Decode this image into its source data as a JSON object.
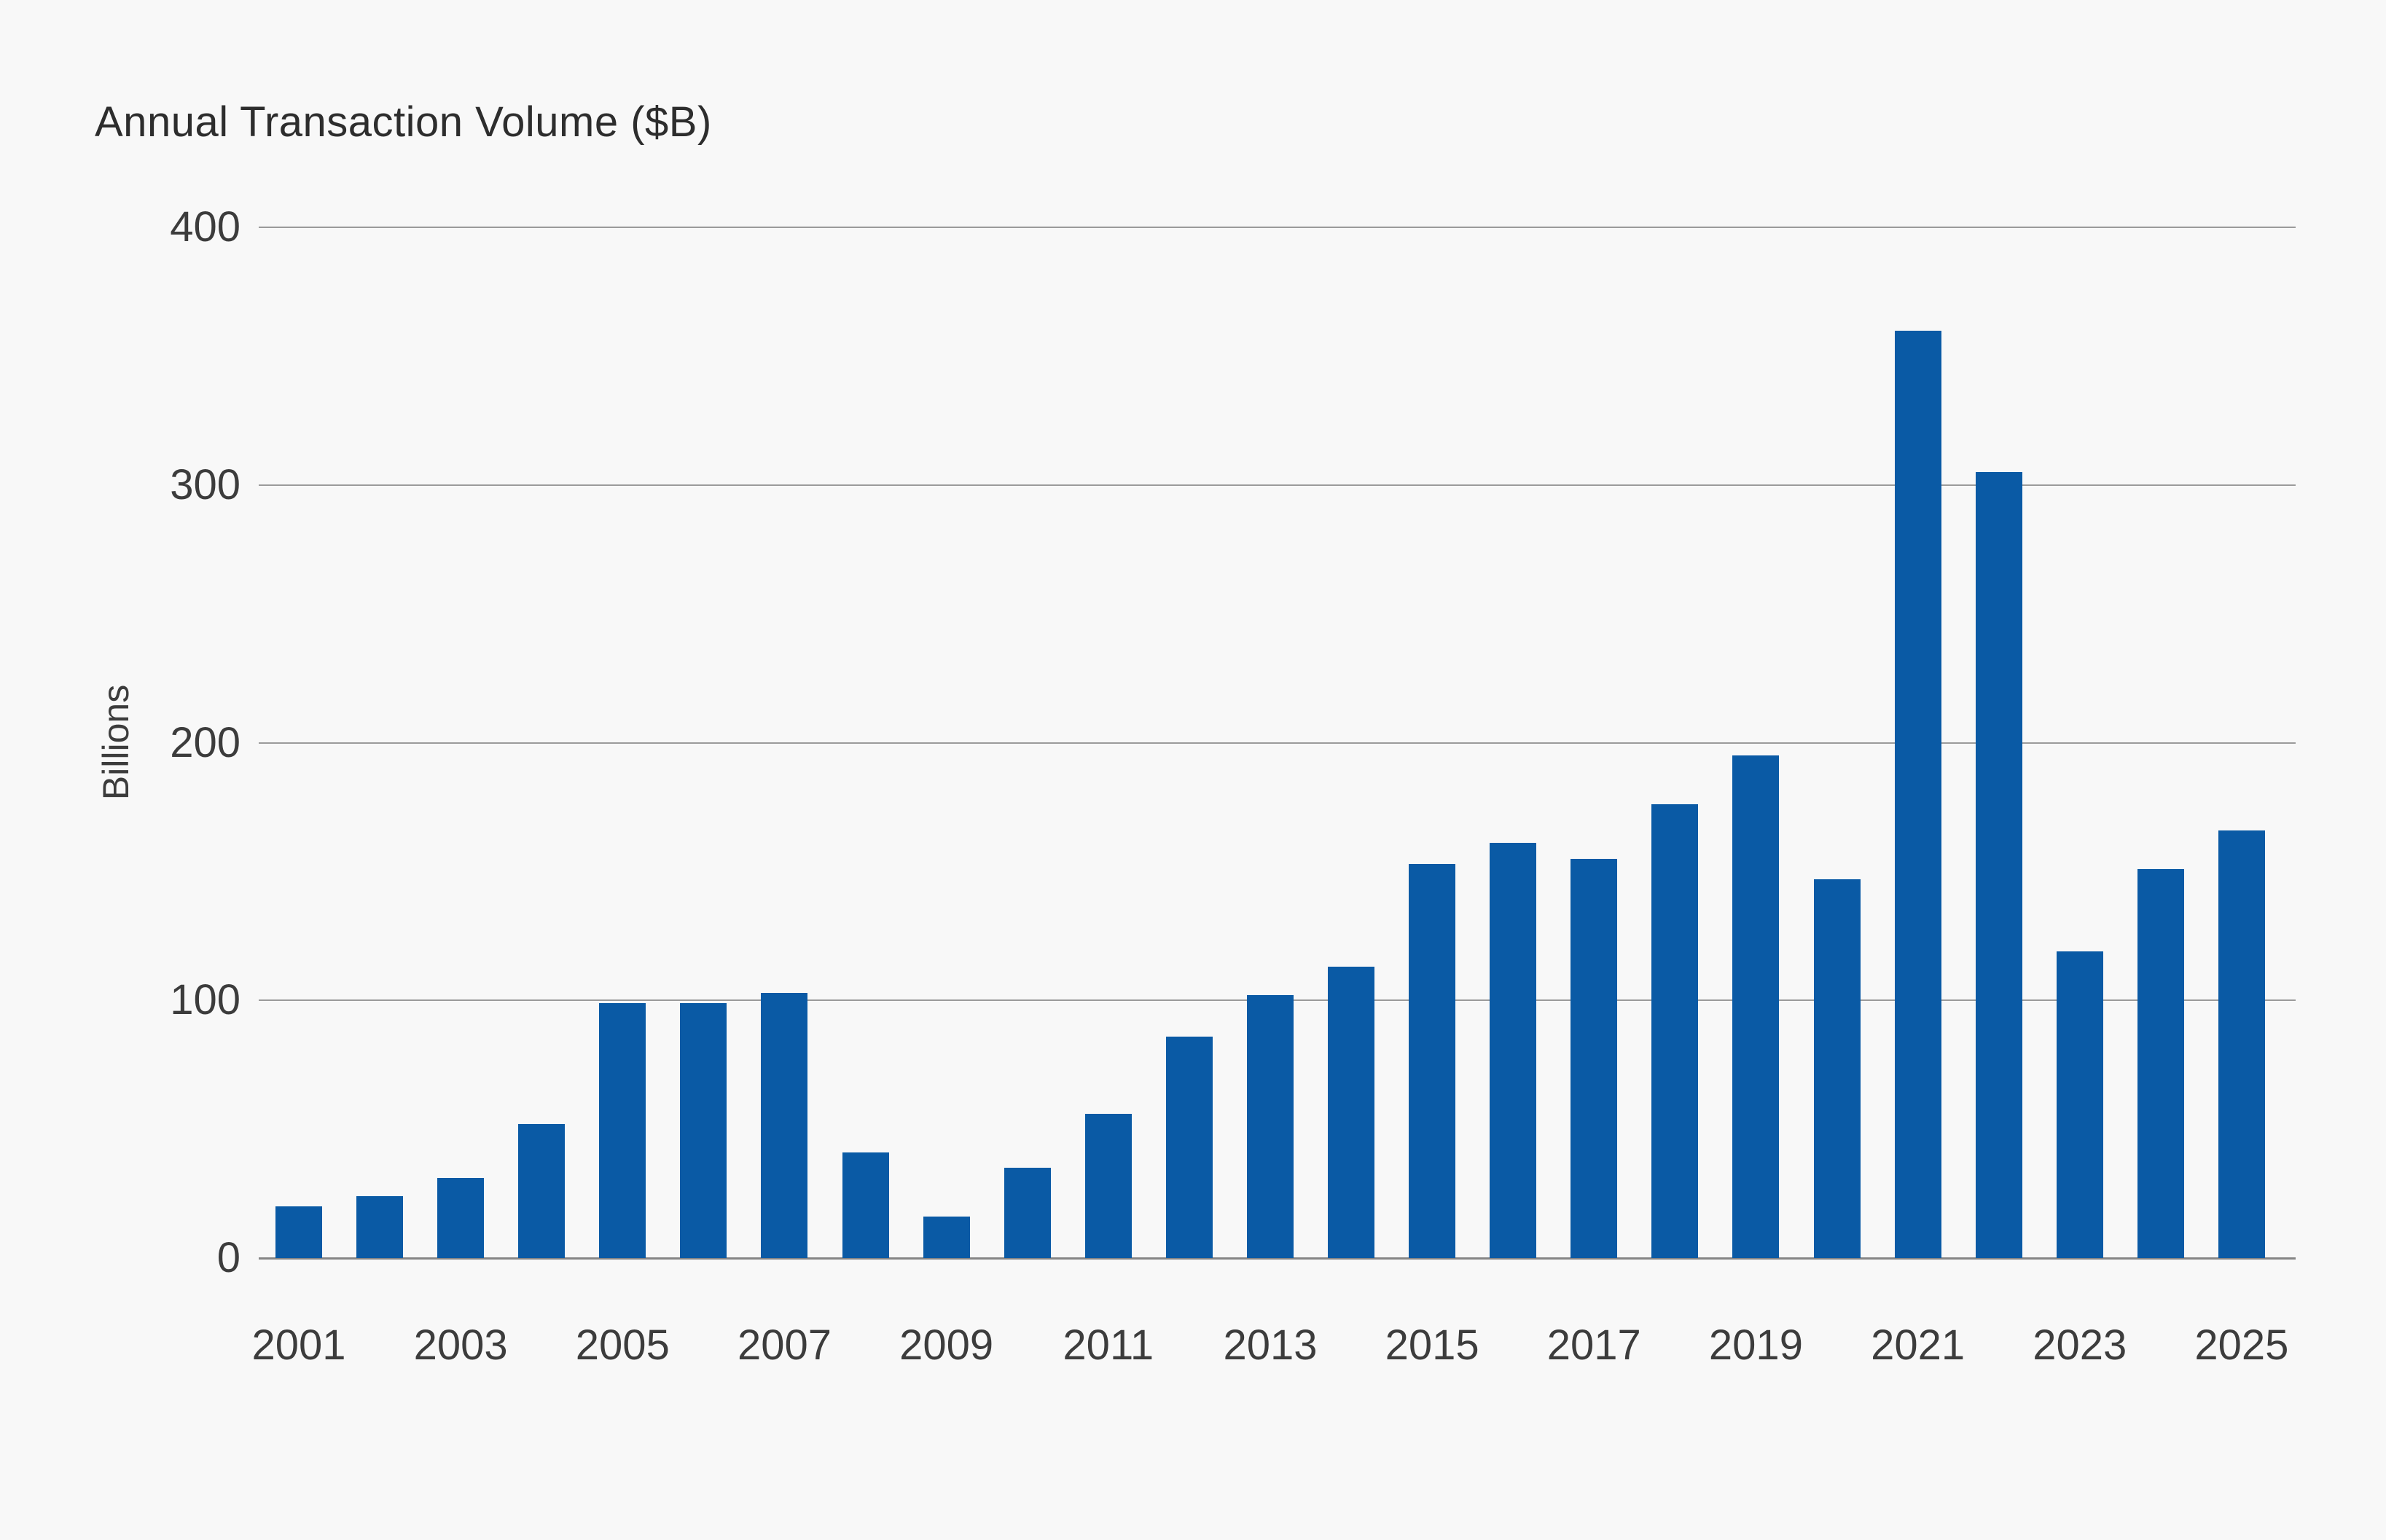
{
  "title": "Annual Transaction Volume ($B)",
  "colors": {
    "background": "#F8F8F8",
    "bar": "#0A5AA5",
    "gridline": "#9B9B9B",
    "axis_baseline": "#858585",
    "text": "#3C3C3C",
    "title_text": "#2D2D2D"
  },
  "chart_data": {
    "type": "bar",
    "title": "Annual Transaction Volume ($B)",
    "xlabel": "",
    "ylabel": "Billions",
    "ylim": [
      0,
      400
    ],
    "yticks": [
      0,
      100,
      200,
      300,
      400
    ],
    "grid": true,
    "legend": false,
    "bar_color": "#0A5AA5",
    "categories": [
      "2001",
      "2002",
      "2003",
      "2004",
      "2005",
      "2006",
      "2007",
      "2008",
      "2009",
      "2010",
      "2011",
      "2012",
      "2013",
      "2014",
      "2015",
      "2016",
      "2017",
      "2018",
      "2019",
      "2020",
      "2021",
      "2022",
      "2023",
      "2024",
      "2025"
    ],
    "values": [
      20,
      24,
      31,
      52,
      99,
      99,
      103,
      41,
      16,
      35,
      56,
      86,
      102,
      113,
      153,
      161,
      155,
      176,
      195,
      147,
      360,
      305,
      119,
      151,
      166
    ],
    "xtick_labels": [
      "2001",
      "2003",
      "2005",
      "2007",
      "2009",
      "2011",
      "2013",
      "2015",
      "2017",
      "2019",
      "2021",
      "2023",
      "2025"
    ]
  }
}
